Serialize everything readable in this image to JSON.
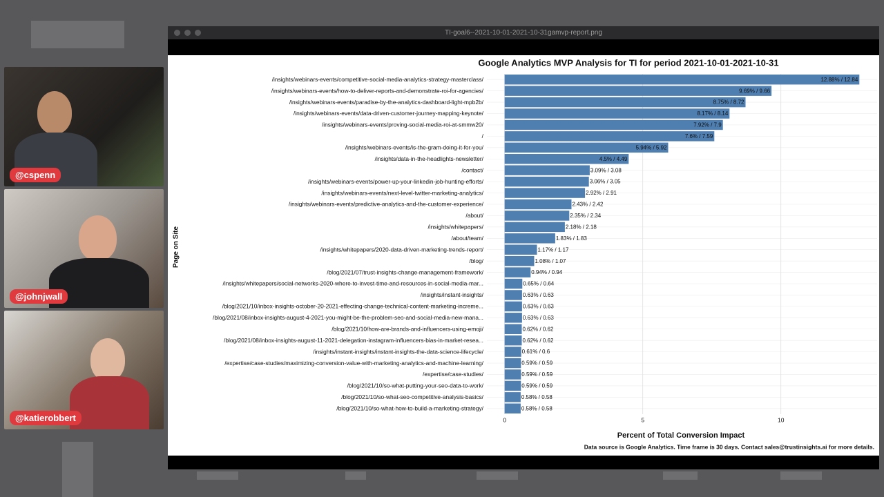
{
  "window": {
    "title": "TI-goal6--2021-10-01-2021-10-31gamvp-report.png"
  },
  "participants": [
    "@cspenn",
    "@johnjwall",
    "@katierobbert"
  ],
  "chart_data": {
    "type": "barh",
    "title": "Google Analytics MVP Analysis for TI for period 2021-10-01-2021-10-31",
    "ylabel": "Page on Site",
    "xlabel": "Percent of Total Conversion Impact",
    "caption": "Data source is Google Analytics. Time frame is 30 days. Contact sales@trustinsights.ai for more details.",
    "color": "#4f7eb0",
    "grid": true,
    "xlim": [
      -0.642,
      13.482
    ],
    "xticks": [
      0,
      5,
      10
    ],
    "categories": [
      "/insights/webinars-events/competitive-social-media-analytics-strategy-masterclass/",
      "/insights/webinars-events/how-to-deliver-reports-and-demonstrate-roi-for-agencies/",
      "/insights/webinars-events/paradise-by-the-analytics-dashboard-light-mpb2b/",
      "/insights/webinars-events/data-driven-customer-journey-mapping-keynote/",
      "/insights/webinars-events/proving-social-media-roi-at-smmw20/",
      "/",
      "/insights/webinars-events/is-the-gram-doing-it-for-you/",
      "/insights/data-in-the-headlights-newsletter/",
      "/contact/",
      "/insights/webinars-events/power-up-your-linkedin-job-hunting-efforts/",
      "/insights/webinars-events/next-level-twitter-marketing-analytics/",
      "/insights/webinars-events/predictive-analytics-and-the-customer-experience/",
      "/about/",
      "/insights/whitepapers/",
      "/about/team/",
      "/insights/whitepapers/2020-data-driven-marketing-trends-report/",
      "/blog/",
      "/blog/2021/07/trust-insights-change-management-framework/",
      "/insights/whitepapers/social-networks-2020-where-to-invest-time-and-resources-in-social-media-mar...",
      "/insights/instant-insights/",
      "/blog/2021/10/inbox-insights-october-20-2021-effecting-change-technical-content-marketing-increme...",
      "/blog/2021/08/inbox-insights-august-4-2021-you-might-be-the-problem-seo-and-social-media-new-mana...",
      "/blog/2021/10/how-are-brands-and-influencers-using-emoji/",
      "/blog/2021/08/inbox-insights-august-11-2021-delegation-instagram-influencers-bias-in-market-resea...",
      "/insights/instant-insights/instant-insights-the-data-science-lifecycle/",
      "/expertise/case-studies/maximizing-conversion-value-with-marketing-analytics-and-machine-learning/",
      "/expertise/case-studies/",
      "/blog/2021/10/so-what-putting-your-seo-data-to-work/",
      "/blog/2021/10/so-what-seo-competitive-analysis-basics/",
      "/blog/2021/10/so-what-how-to-build-a-marketing-strategy/"
    ],
    "values": [
      12.84,
      9.66,
      8.72,
      8.14,
      7.9,
      7.59,
      5.92,
      4.49,
      3.08,
      3.05,
      2.91,
      2.42,
      2.34,
      2.18,
      1.83,
      1.17,
      1.07,
      0.94,
      0.64,
      0.63,
      0.63,
      0.63,
      0.62,
      0.62,
      0.6,
      0.59,
      0.59,
      0.59,
      0.58,
      0.58
    ],
    "value_labels": [
      "12.88% / 12.84",
      "9.69% / 9.66",
      "8.75% / 8.72",
      "8.17% / 8.14",
      "7.92% / 7.9",
      "7.6% / 7.59",
      "5.94% / 5.92",
      "4.5% / 4.49",
      "3.09% / 3.08",
      "3.06% / 3.05",
      "2.92% / 2.91",
      "2.43% / 2.42",
      "2.35% / 2.34",
      "2.18% / 2.18",
      "1.83% / 1.83",
      "1.17% / 1.17",
      "1.08% / 1.07",
      "0.94% / 0.94",
      "0.65% / 0.64",
      "0.63% / 0.63",
      "0.63% / 0.63",
      "0.63% / 0.63",
      "0.62% / 0.62",
      "0.62% / 0.62",
      "0.61% / 0.6",
      "0.59% / 0.59",
      "0.59% / 0.59",
      "0.59% / 0.59",
      "0.58% / 0.58",
      "0.58% / 0.58"
    ]
  }
}
